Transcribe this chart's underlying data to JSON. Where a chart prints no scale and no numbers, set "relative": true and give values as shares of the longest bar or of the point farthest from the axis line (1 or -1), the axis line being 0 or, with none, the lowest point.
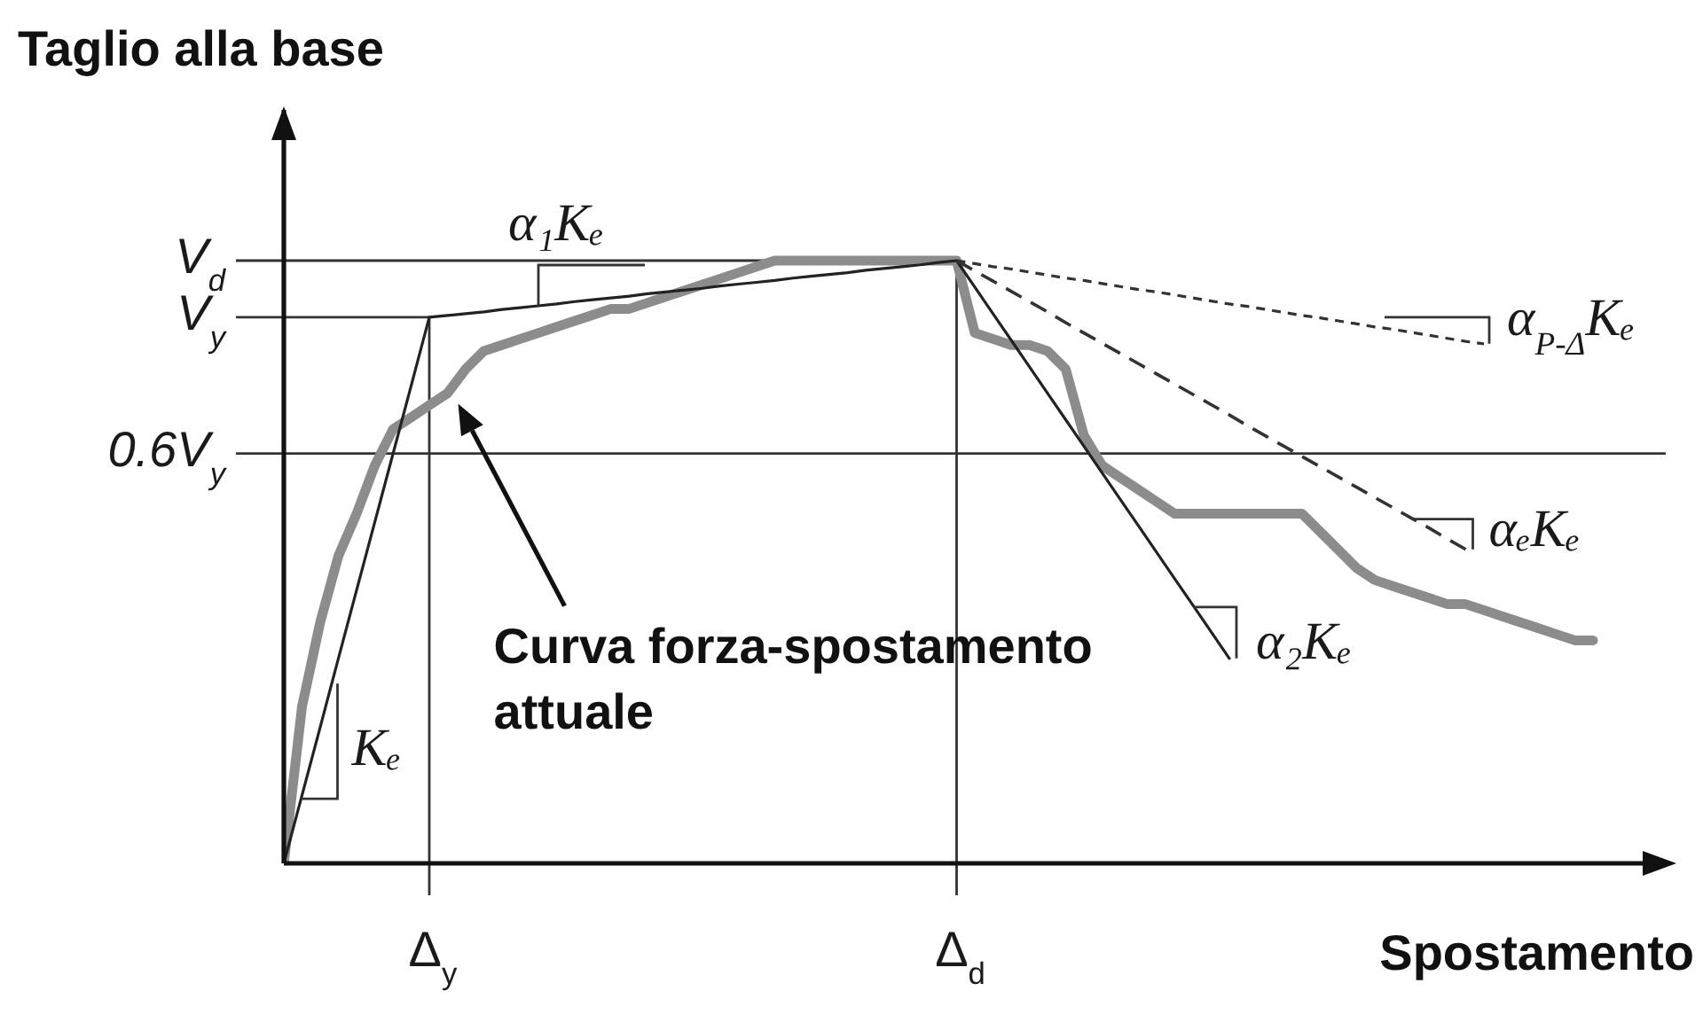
{
  "chart_data": {
    "type": "line",
    "relative": true,
    "xlabel": "Spostamento",
    "ylabel": "Taglio alla base",
    "line_style": "solid",
    "marker": "none",
    "categories": [
      null,
      null,
      null,
      null,
      null,
      null,
      null,
      null,
      "Δ$_{y}$",
      null,
      null,
      null,
      null,
      null,
      null,
      null,
      null,
      null,
      null,
      null,
      null,
      null,
      null,
      null,
      null,
      null,
      null,
      null,
      null,
      null,
      null,
      null,
      null,
      null,
      null,
      null,
      null,
      "Δ$_{d}$",
      null,
      null,
      null,
      null,
      null,
      null,
      null,
      null,
      null,
      null,
      null,
      null,
      null,
      null,
      null,
      null,
      null,
      null,
      null,
      null,
      null,
      null,
      null,
      null,
      null,
      null,
      null,
      null,
      null,
      null,
      null,
      null,
      null,
      null,
      null,
      null,
      null,
      null,
      null
    ],
    "series": [
      {
        "color": "#8c8c8c",
        "values": [
          0,
          0.26,
          0.4,
          0.51,
          0.58,
          0.66,
          0.72,
          0.74,
          0.76,
          0.78,
          0.82,
          0.85,
          0.86,
          0.87,
          0.88,
          0.89,
          0.9,
          0.91,
          0.92,
          0.92,
          0.93,
          0.94,
          0.95,
          0.96,
          0.97,
          0.98,
          0.99,
          1,
          1,
          1,
          1,
          1,
          1,
          1,
          1,
          1,
          1,
          1,
          0.88,
          0.87,
          0.86,
          0.86,
          0.85,
          0.82,
          0.71,
          0.66,
          0.64,
          0.62,
          0.6,
          0.58,
          0.58,
          0.58,
          0.58,
          0.58,
          0.58,
          0.58,
          0.58,
          0.55,
          0.52,
          0.49,
          0.47,
          0.46,
          0.45,
          0.44,
          0.43,
          0.43,
          0.42,
          0.41,
          0.4,
          0.39,
          0.38,
          0.37,
          0.37,
          null,
          null,
          null,
          null
        ]
      },
      {
        "color": "#222222",
        "values": [
          0,
          0.113,
          0.226,
          0.34,
          0.453,
          0.566,
          0.679,
          0.792,
          0.906,
          0.909,
          0.912,
          0.915,
          0.919,
          0.922,
          0.925,
          0.928,
          0.932,
          0.935,
          0.938,
          0.941,
          0.945,
          0.948,
          0.951,
          0.954,
          0.958,
          0.961,
          0.964,
          0.967,
          0.971,
          0.974,
          0.977,
          0.98,
          0.984,
          0.987,
          0.99,
          0.993,
          0.997,
          1,
          0.956,
          0.912,
          0.868,
          0.824,
          0.78,
          0.736,
          0.692,
          0.648,
          0.604,
          0.56,
          0.516,
          0.472,
          0.428,
          0.384,
          0.34,
          null,
          null,
          null,
          null,
          null,
          null,
          null,
          null,
          null,
          null,
          null,
          null,
          null,
          null,
          null,
          null,
          null,
          null,
          null,
          null,
          null,
          null,
          null,
          null
        ]
      },
      {
        "color": "#333333",
        "line_style": "dashed",
        "values": [
          null,
          null,
          null,
          null,
          null,
          null,
          null,
          null,
          null,
          null,
          null,
          null,
          null,
          null,
          null,
          null,
          null,
          null,
          null,
          null,
          null,
          null,
          null,
          null,
          null,
          null,
          null,
          null,
          null,
          null,
          null,
          null,
          null,
          null,
          null,
          null,
          null,
          1,
          0.983,
          0.966,
          0.949,
          0.932,
          0.915,
          0.897,
          0.88,
          0.863,
          0.846,
          0.829,
          0.812,
          0.795,
          0.778,
          0.761,
          0.744,
          0.726,
          0.709,
          0.692,
          0.675,
          0.658,
          0.641,
          0.624,
          0.607,
          0.59,
          0.573,
          0.556,
          0.538,
          0.521,
          null,
          null,
          null,
          null,
          null,
          null,
          null,
          null,
          null,
          null,
          null
        ]
      },
      {
        "color": "#333333",
        "line_style": "dotted",
        "values": [
          null,
          null,
          null,
          null,
          null,
          null,
          null,
          null,
          null,
          null,
          null,
          null,
          null,
          null,
          null,
          null,
          null,
          null,
          null,
          null,
          null,
          null,
          null,
          null,
          null,
          null,
          null,
          null,
          null,
          null,
          null,
          null,
          null,
          null,
          null,
          null,
          null,
          1,
          0.995,
          0.99,
          0.986,
          0.981,
          0.976,
          0.971,
          0.967,
          0.962,
          0.957,
          0.952,
          0.948,
          0.943,
          0.938,
          0.933,
          0.928,
          0.924,
          0.919,
          0.914,
          0.909,
          0.905,
          0.9,
          0.895,
          0.89,
          0.886,
          0.881,
          0.876,
          0.871,
          0.866,
          0.862,
          null,
          null,
          null,
          null,
          null,
          null,
          null,
          null,
          null,
          null
        ]
      }
    ],
    "ref_lines": [
      {
        "axis": "y",
        "value": 1,
        "label": "V$_{d}$"
      },
      {
        "axis": "y",
        "value": 0.906,
        "label": "V$_{y}$"
      },
      {
        "axis": "y",
        "value": 0.68,
        "label": "0.6V$_{y}$"
      },
      {
        "axis": "x",
        "value": "Δ$_{y}$"
      },
      {
        "axis": "x",
        "value": "Δ$_{d}$"
      }
    ],
    "annotations": [
      "α₁Kₑ",
      "α₂Kₑ",
      "αₑKₑ",
      "α$_{P-Δ}$Kₑ",
      "Kₑ",
      "Curva forza-spostamento attuale"
    ]
  }
}
